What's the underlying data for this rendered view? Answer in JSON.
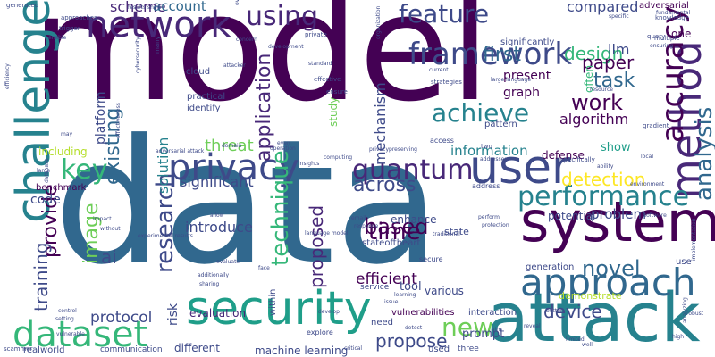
{
  "words": [
    {
      "text": "model",
      "color": "#440154"
    },
    {
      "text": "data",
      "color": "#31688e"
    },
    {
      "text": "attack",
      "color": "#26828e"
    },
    {
      "text": "system",
      "color": "#440154"
    },
    {
      "text": "user",
      "color": "#3e4a89"
    },
    {
      "text": "security",
      "color": "#1f9e89"
    },
    {
      "text": "approach",
      "color": "#31688e"
    },
    {
      "text": "privacy",
      "color": "#3e4a89"
    },
    {
      "text": "method",
      "color": "#482878"
    },
    {
      "text": "challenge",
      "color": "#26828e"
    },
    {
      "text": "network",
      "color": "#482878"
    },
    {
      "text": "dataset",
      "color": "#35b779"
    },
    {
      "text": "framework",
      "color": "#3e4a89"
    },
    {
      "text": "performance",
      "color": "#26828e"
    },
    {
      "text": "accuracy",
      "color": "#440154"
    },
    {
      "text": "analysis",
      "color": "#31688e"
    },
    {
      "text": "quantum",
      "color": "#482878"
    },
    {
      "text": "key",
      "color": "#35b779"
    },
    {
      "text": "research",
      "color": "#3e4a89"
    },
    {
      "text": "technique",
      "color": "#35b779"
    },
    {
      "text": "using",
      "color": "#482878"
    },
    {
      "text": "feature",
      "color": "#3e4a89"
    },
    {
      "text": "application",
      "color": "#482878"
    },
    {
      "text": "achieve",
      "color": "#26828e"
    },
    {
      "text": "new",
      "color": "#6ece58"
    },
    {
      "text": "time",
      "color": "#440154"
    },
    {
      "text": "work",
      "color": "#440154"
    },
    {
      "text": "novel",
      "color": "#31688e"
    },
    {
      "text": "based",
      "color": "#440154"
    },
    {
      "text": "image",
      "color": "#6ece58"
    },
    {
      "text": "across",
      "color": "#3e4a89"
    },
    {
      "text": "provide",
      "color": "#440154"
    },
    {
      "text": "existing",
      "color": "#31688e"
    },
    {
      "text": "task",
      "color": "#31688e"
    },
    {
      "text": "first",
      "color": "#31688e"
    },
    {
      "text": "design",
      "color": "#35b779"
    },
    {
      "text": "detection",
      "color": "#fde725"
    },
    {
      "text": "device",
      "color": "#3e4a89"
    },
    {
      "text": "propose",
      "color": "#3e4a89"
    },
    {
      "text": "proposed",
      "color": "#482878"
    },
    {
      "text": "training",
      "color": "#3e4a89"
    },
    {
      "text": "paper",
      "color": "#440154"
    },
    {
      "text": "solution",
      "color": "#26828e"
    },
    {
      "text": "threat",
      "color": "#6ece58"
    },
    {
      "text": "mechanism",
      "color": "#3e4a89"
    },
    {
      "text": "ai",
      "color": "#3e4a89"
    },
    {
      "text": "significant",
      "color": "#3e4a89"
    },
    {
      "text": "introduce",
      "color": "#3e4a89"
    },
    {
      "text": "protocol",
      "color": "#3e4a89"
    },
    {
      "text": "efficient",
      "color": "#440154"
    },
    {
      "text": "algorithm",
      "color": "#440154"
    },
    {
      "text": "information",
      "color": "#26828e"
    },
    {
      "text": "problem",
      "color": "#3e4a89"
    },
    {
      "text": "scheme",
      "color": "#482878"
    },
    {
      "text": "account",
      "color": "#31688e"
    },
    {
      "text": "compared",
      "color": "#3e4a89"
    },
    {
      "text": "llm",
      "color": "#3e4a89"
    },
    {
      "text": "graph",
      "color": "#440154"
    },
    {
      "text": "present",
      "color": "#440154"
    },
    {
      "text": "code",
      "color": "#3e4a89"
    },
    {
      "text": "risk",
      "color": "#3e4a89"
    },
    {
      "text": "study",
      "color": "#6ece58"
    },
    {
      "text": "platform",
      "color": "#3e4a89"
    },
    {
      "text": "including",
      "color": "#b5de2b"
    },
    {
      "text": "tool",
      "color": "#3e4a89"
    },
    {
      "text": "prompt",
      "color": "#3e4a89"
    },
    {
      "text": "show",
      "color": "#1f9e89"
    },
    {
      "text": "potential",
      "color": "#3e4a89"
    },
    {
      "text": "enhance",
      "color": "#3e4a89"
    },
    {
      "text": "evaluation",
      "color": "#482878"
    },
    {
      "text": "various",
      "color": "#3e4a89"
    },
    {
      "text": "state",
      "color": "#3e4a89"
    },
    {
      "text": "defense",
      "color": "#440154"
    },
    {
      "text": "one",
      "color": "#440154"
    },
    {
      "text": "demonstrate",
      "color": "#b5de2b"
    },
    {
      "text": "different",
      "color": "#3e4a89"
    },
    {
      "text": "machine learning",
      "color": "#3e4a89"
    },
    {
      "text": "realworld",
      "color": "#3e4a89"
    },
    {
      "text": "communication",
      "color": "#3e4a89"
    },
    {
      "text": "interaction",
      "color": "#3e4a89"
    },
    {
      "text": "stateoftheart",
      "color": "#3e4a89"
    },
    {
      "text": "vulnerabilities",
      "color": "#440154"
    },
    {
      "text": "adversarial",
      "color": "#440154"
    },
    {
      "text": "significantly",
      "color": "#3e4a89"
    },
    {
      "text": "often",
      "color": "#35b779"
    },
    {
      "text": "pattern",
      "color": "#3e4a89"
    },
    {
      "text": "benchmark",
      "color": "#440154"
    },
    {
      "text": "generation",
      "color": "#3e4a89"
    },
    {
      "text": "use",
      "color": "#3e4a89"
    },
    {
      "text": "need",
      "color": "#3e4a89"
    },
    {
      "text": "used",
      "color": "#3e4a89"
    },
    {
      "text": "three",
      "color": "#3e4a89"
    },
    {
      "text": "explore",
      "color": "#3e4a89"
    },
    {
      "text": "scammer",
      "color": "#3e4a89"
    },
    {
      "text": "within",
      "color": "#3e4a89"
    },
    {
      "text": "cloud",
      "color": "#3e4a89"
    },
    {
      "text": "identify",
      "color": "#3e4a89"
    },
    {
      "text": "practical",
      "color": "#3e4a89"
    },
    {
      "text": "secure",
      "color": "#3e4a89"
    },
    {
      "text": "service",
      "color": "#3e4a89"
    },
    {
      "text": "address",
      "color": "#3e4a89"
    },
    {
      "text": "knowledge",
      "color": "#3e4a89"
    },
    {
      "text": "query",
      "color": "#3e4a89"
    },
    {
      "text": "multiple",
      "color": "#3e4a89"
    },
    {
      "text": "fundamental",
      "color": "#3e4a89"
    },
    {
      "text": "strategies",
      "color": "#3e4a89"
    },
    {
      "text": "current",
      "color": "#3e4a89"
    },
    {
      "text": "large language",
      "color": "#3e4a89"
    },
    {
      "text": "generated",
      "color": "#3e4a89"
    },
    {
      "text": "approaches",
      "color": "#3e4a89"
    },
    {
      "text": "trigger",
      "color": "#3e4a89"
    },
    {
      "text": "enable",
      "color": "#3e4a89"
    },
    {
      "text": "results show",
      "color": "#3e4a89"
    },
    {
      "text": "attacker",
      "color": "#3e4a89"
    },
    {
      "text": "development",
      "color": "#3e4a89"
    },
    {
      "text": "standard",
      "color": "#3e4a89"
    },
    {
      "text": "effective",
      "color": "#3e4a89"
    },
    {
      "text": "ensure",
      "color": "#3e4a89"
    },
    {
      "text": "access",
      "color": "#3e4a89"
    },
    {
      "text": "privacypreserving",
      "color": "#3e4a89"
    },
    {
      "text": "computing",
      "color": "#3e4a89"
    },
    {
      "text": "adversarial attack",
      "color": "#3e4a89"
    },
    {
      "text": "domain",
      "color": "#3e4a89"
    },
    {
      "text": "even",
      "color": "#3e4a89"
    },
    {
      "text": "operation",
      "color": "#3e4a89"
    },
    {
      "text": "effectiveness",
      "color": "#3e4a89"
    },
    {
      "text": "database",
      "color": "#3e4a89"
    },
    {
      "text": "large",
      "color": "#3e4a89"
    },
    {
      "text": "impact",
      "color": "#3e4a89"
    },
    {
      "text": "without",
      "color": "#3e4a89"
    },
    {
      "text": "experimental results",
      "color": "#3e4a89"
    },
    {
      "text": "allow",
      "color": "#3e4a89"
    },
    {
      "text": "email",
      "color": "#3e4a89"
    },
    {
      "text": "response",
      "color": "#3e4a89"
    },
    {
      "text": "language model",
      "color": "#3e4a89"
    },
    {
      "text": "sharing",
      "color": "#3e4a89"
    },
    {
      "text": "additionally",
      "color": "#3e4a89"
    },
    {
      "text": "evaluate",
      "color": "#3e4a89"
    },
    {
      "text": "control",
      "color": "#3e4a89"
    },
    {
      "text": "setting",
      "color": "#3e4a89"
    },
    {
      "text": "vulnerable",
      "color": "#3e4a89"
    },
    {
      "text": "develop",
      "color": "#3e4a89"
    },
    {
      "text": "face",
      "color": "#3e4a89"
    },
    {
      "text": "insights",
      "color": "#3e4a89"
    },
    {
      "text": "issue",
      "color": "#3e4a89"
    },
    {
      "text": "learning",
      "color": "#3e4a89"
    },
    {
      "text": "detect",
      "color": "#3e4a89"
    },
    {
      "text": "critical",
      "color": "#3e4a89"
    },
    {
      "text": "aim",
      "color": "#3e4a89"
    },
    {
      "text": "limited",
      "color": "#3e4a89"
    },
    {
      "text": "well",
      "color": "#3e4a89"
    },
    {
      "text": "high",
      "color": "#3e4a89"
    },
    {
      "text": "better",
      "color": "#3e4a89"
    },
    {
      "text": "reveal",
      "color": "#3e4a89"
    },
    {
      "text": "analyzing",
      "color": "#3e4a89"
    },
    {
      "text": "robust",
      "color": "#3e4a89"
    },
    {
      "text": "gradient",
      "color": "#3e4a89"
    },
    {
      "text": "ability",
      "color": "#3e4a89"
    },
    {
      "text": "environment",
      "color": "#3e4a89"
    },
    {
      "text": "implementation",
      "color": "#3e4a89"
    },
    {
      "text": "perform",
      "color": "#3e4a89"
    },
    {
      "text": "protection",
      "color": "#3e4a89"
    },
    {
      "text": "traditional",
      "color": "#3e4a89"
    },
    {
      "text": "specifically",
      "color": "#3e4a89"
    },
    {
      "text": "two",
      "color": "#3e4a89"
    },
    {
      "text": "addresses",
      "color": "#3e4a89"
    },
    {
      "text": "organization",
      "color": "#3e4a89"
    },
    {
      "text": "private",
      "color": "#3e4a89"
    },
    {
      "text": "concern",
      "color": "#3e4a89"
    },
    {
      "text": "cybersecurity",
      "color": "#3e4a89"
    },
    {
      "text": "many",
      "color": "#3e4a89"
    },
    {
      "text": "efficiency",
      "color": "#3e4a89"
    },
    {
      "text": "may",
      "color": "#3e4a89"
    },
    {
      "text": "resource",
      "color": "#3e4a89"
    },
    {
      "text": "software",
      "color": "#3e4a89"
    },
    {
      "text": "local",
      "color": "#3e4a89"
    },
    {
      "text": "ensuring",
      "color": "#3e4a89"
    },
    {
      "text": "specific",
      "color": "#3e4a89"
    },
    {
      "text": "overhead",
      "color": "#3e4a89"
    }
  ]
}
